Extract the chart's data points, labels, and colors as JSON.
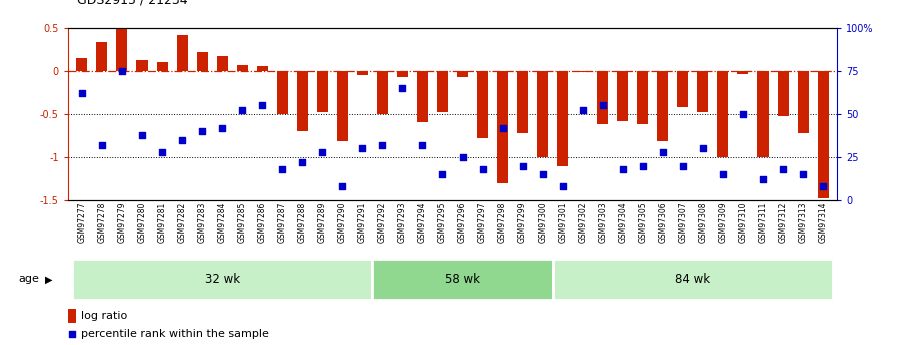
{
  "title": "GDS2915 / 21234",
  "samples": [
    "GSM97277",
    "GSM97278",
    "GSM97279",
    "GSM97280",
    "GSM97281",
    "GSM97282",
    "GSM97283",
    "GSM97284",
    "GSM97285",
    "GSM97286",
    "GSM97287",
    "GSM97288",
    "GSM97289",
    "GSM97290",
    "GSM97291",
    "GSM97292",
    "GSM97293",
    "GSM97294",
    "GSM97295",
    "GSM97296",
    "GSM97297",
    "GSM97298",
    "GSM97299",
    "GSM97300",
    "GSM97301",
    "GSM97302",
    "GSM97303",
    "GSM97304",
    "GSM97305",
    "GSM97306",
    "GSM97307",
    "GSM97308",
    "GSM97309",
    "GSM97310",
    "GSM97311",
    "GSM97312",
    "GSM97313",
    "GSM97314"
  ],
  "log_ratio": [
    0.15,
    0.33,
    0.5,
    0.12,
    0.1,
    0.42,
    0.22,
    0.17,
    0.07,
    0.05,
    -0.5,
    -0.7,
    -0.48,
    -0.82,
    -0.05,
    -0.5,
    -0.07,
    -0.6,
    -0.48,
    -0.07,
    -0.78,
    -1.3,
    -0.72,
    -1.0,
    -1.1,
    -0.02,
    -0.62,
    -0.58,
    -0.62,
    -0.82,
    -0.42,
    -0.48,
    -1.0,
    -0.04,
    -1.0,
    -0.52,
    -0.72,
    -1.48
  ],
  "percentile": [
    62,
    32,
    75,
    38,
    28,
    35,
    40,
    42,
    52,
    55,
    18,
    22,
    28,
    8,
    30,
    32,
    65,
    32,
    15,
    25,
    18,
    42,
    20,
    15,
    8,
    52,
    55,
    18,
    20,
    28,
    20,
    30,
    15,
    50,
    12,
    18,
    15,
    8
  ],
  "groups": [
    {
      "label": "32 wk",
      "start": 0,
      "end": 15,
      "color": "#c8f0c8"
    },
    {
      "label": "58 wk",
      "start": 15,
      "end": 24,
      "color": "#90d890"
    },
    {
      "label": "84 wk",
      "start": 24,
      "end": 38,
      "color": "#c8f0c8"
    }
  ],
  "bar_color": "#cc2200",
  "dot_color": "#0000cc",
  "ylim_left": [
    -1.5,
    0.5
  ],
  "ylim_right": [
    0,
    100
  ],
  "hline_zero_color": "#cc2200",
  "hline_dotted_vals": [
    -0.5,
    -1.0
  ],
  "background_color": "#ffffff"
}
